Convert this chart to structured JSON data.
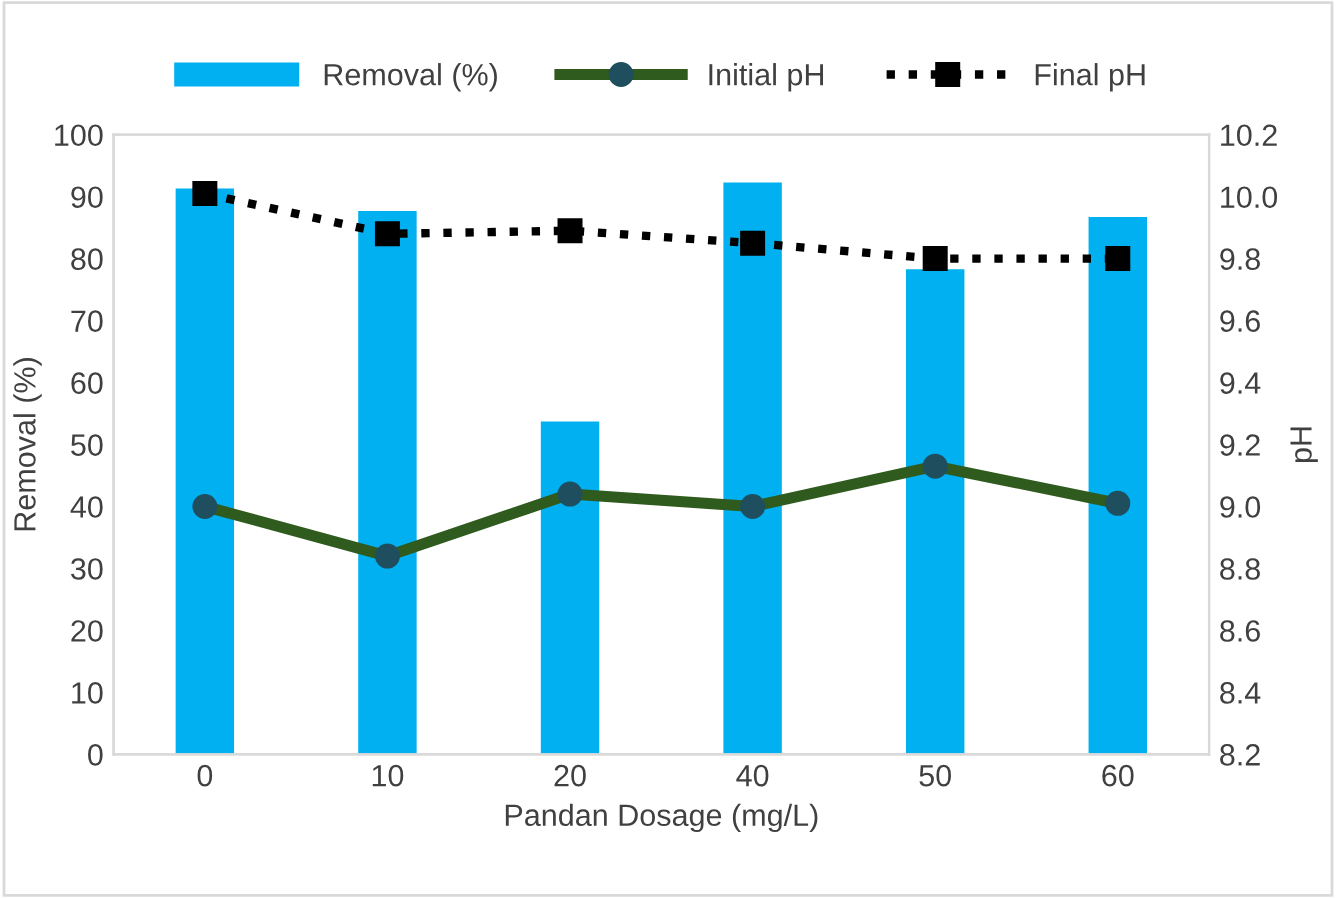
{
  "chart_data": {
    "type": "bar",
    "xlabel": "Pandan Dosage (mg/L)",
    "ylabel": "Removal (%)",
    "y2label": "pH",
    "categories": [
      "0",
      "10",
      "20",
      "40",
      "50",
      "60"
    ],
    "series": [
      {
        "name": "Removal (%)",
        "color": "#00b0f0",
        "values": [
          91.3,
          87.7,
          53.7,
          92.3,
          78.3,
          86.7
        ]
      },
      {
        "name": "Initial pH",
        "type": "line",
        "axis": "y2",
        "color": "#2f5b1e",
        "marker": "circle",
        "line_style": "solid",
        "values": [
          9.0,
          8.84,
          9.04,
          9.0,
          9.13,
          9.01
        ]
      },
      {
        "name": "Final pH",
        "type": "line",
        "axis": "y2",
        "color": "#000000",
        "marker": "square",
        "line_style": "dotted",
        "values": [
          10.01,
          9.88,
          9.89,
          9.85,
          9.8,
          9.8
        ]
      }
    ],
    "ylim": [
      0,
      100
    ],
    "yticks": [
      0,
      10,
      20,
      30,
      40,
      50,
      60,
      70,
      80,
      90,
      100
    ],
    "y2lim": [
      8.2,
      10.2
    ],
    "y2ticks": [
      {
        "value": 8.2,
        "label": "8.2"
      },
      {
        "value": 8.4,
        "label": "8.4"
      },
      {
        "value": 8.6,
        "label": "8.6"
      },
      {
        "value": 8.8,
        "label": "8.8"
      },
      {
        "value": 9.0,
        "label": "9.0"
      },
      {
        "value": 9.2,
        "label": "9.2"
      },
      {
        "value": 9.4,
        "label": "9.4"
      },
      {
        "value": 9.6,
        "label": "9.6"
      },
      {
        "value": 9.8,
        "label": "9.8"
      },
      {
        "value": 10.0,
        "label": "10.0"
      },
      {
        "value": 10.2,
        "label": "10.2"
      }
    ],
    "grid": false,
    "legend": "top"
  }
}
